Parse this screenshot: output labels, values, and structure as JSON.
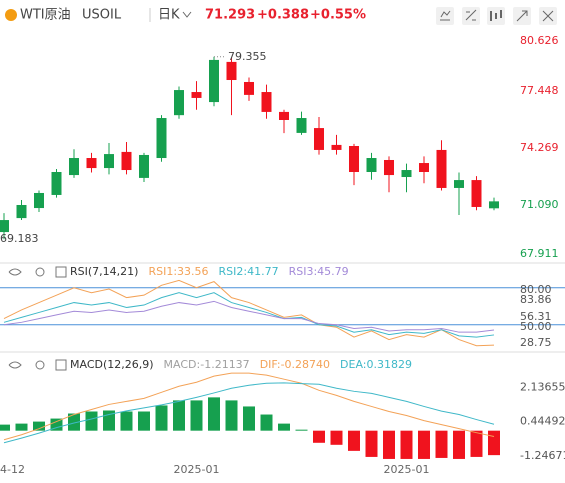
{
  "header": {
    "title": "WTI原油",
    "symbol": "USOIL",
    "period": "日K",
    "price": "71.293",
    "change": "+0.388",
    "change_pct": "+0.55%"
  },
  "chart_data": [
    {
      "type": "candlestick",
      "up_color": "#16a04f",
      "down_color": "#f0131e",
      "categories": [
        "4-12",
        null,
        null,
        null,
        null,
        null,
        null,
        null,
        null,
        null,
        null,
        "2025-01",
        null,
        null,
        null,
        null,
        null,
        null,
        null,
        null,
        null,
        null,
        null,
        "2025-01",
        null,
        null,
        null,
        null,
        null
      ],
      "open": [
        69.58,
        70.36,
        70.92,
        71.65,
        72.76,
        73.71,
        73.15,
        74.05,
        72.6,
        73.71,
        76.1,
        77.39,
        76.83,
        79.07,
        77.95,
        77.39,
        76.28,
        75.11,
        75.38,
        74.44,
        74.38,
        72.93,
        73.6,
        72.65,
        73.43,
        74.16,
        72.04,
        72.48,
        70.905
      ],
      "high": [
        70.64,
        71.37,
        71.9,
        73.1,
        74.2,
        74.0,
        74.55,
        74.6,
        74.0,
        76.1,
        77.7,
        78.0,
        79.355,
        79.3,
        78.2,
        77.8,
        76.4,
        76.3,
        76.0,
        75.0,
        74.5,
        74.0,
        73.8,
        73.4,
        73.8,
        74.7,
        72.9,
        72.7,
        71.5
      ],
      "low": [
        69.183,
        70.25,
        70.7,
        71.5,
        72.6,
        72.9,
        72.8,
        72.8,
        72.37,
        73.5,
        75.9,
        76.4,
        76.6,
        76.1,
        76.9,
        75.9,
        75.1,
        75.0,
        73.9,
        73.9,
        72.2,
        72.5,
        71.8,
        71.8,
        72.3,
        71.9,
        70.53,
        70.8,
        70.8
      ],
      "close": [
        70.25,
        71.09,
        71.76,
        72.93,
        73.71,
        73.15,
        73.93,
        73.04,
        73.88,
        75.94,
        77.5,
        77.06,
        79.18,
        78.06,
        77.23,
        76.28,
        75.83,
        75.94,
        74.16,
        74.16,
        72.93,
        73.71,
        72.76,
        73.04,
        72.93,
        72.04,
        72.48,
        70.98,
        71.293
      ],
      "ylim": [
        67.911,
        80.626
      ],
      "yticks": [
        80.626,
        77.448,
        74.269,
        {
          "value": 71.09,
          "label": "71.090"
        },
        67.911
      ],
      "annotations": [
        "79.355",
        "69.183"
      ]
    },
    {
      "type": "line",
      "title": "RSI(7,14,21)",
      "series": [
        {
          "name": "RSI1:33.56",
          "color": "#f3a257",
          "values": [
            55,
            62,
            68,
            74,
            80,
            76,
            79,
            72,
            74,
            82,
            86,
            80,
            85,
            72,
            68,
            62,
            56,
            58,
            50,
            48,
            40,
            45,
            38,
            42,
            40,
            46,
            38,
            33,
            33.56
          ]
        },
        {
          "name": "RSI2:41.77",
          "color": "#3fb8c8",
          "values": [
            52,
            56,
            60,
            64,
            68,
            66,
            68,
            64,
            66,
            72,
            76,
            72,
            76,
            68,
            64,
            60,
            55,
            56,
            50,
            49,
            44,
            46,
            42,
            44,
            43,
            46,
            41,
            40,
            41.77
          ]
        },
        {
          "name": "RSI3:45.79",
          "color": "#a38ad8",
          "values": [
            50,
            52,
            55,
            58,
            61,
            60,
            62,
            60,
            61,
            65,
            68,
            66,
            69,
            64,
            61,
            58,
            55,
            55,
            51,
            50,
            47,
            48,
            45,
            46,
            46,
            47,
            44,
            44,
            45.79
          ]
        }
      ],
      "ylim": [
        28.75,
        83.86
      ],
      "yticks": [
        {
          "value": 80,
          "label": "80.00"
        },
        83.86,
        56.31,
        {
          "value": 50,
          "label": "50.00"
        },
        28.75
      ],
      "reference_lines": [
        80,
        50
      ],
      "reference_color": "#4a90d9"
    },
    {
      "type": "macd",
      "title": "MACD(12,26,9)",
      "up_color": "#16a04f",
      "down_color": "#f0131e",
      "series": [
        {
          "name": "MACD:-1.21137",
          "color": "#a0a0a0",
          "kind": "bar",
          "values": [
            0.3,
            0.35,
            0.45,
            0.6,
            0.85,
            0.95,
            1.0,
            0.95,
            0.95,
            1.25,
            1.5,
            1.5,
            1.65,
            1.5,
            1.2,
            0.8,
            0.35,
            0.05,
            -0.6,
            -0.7,
            -1.0,
            -1.3,
            -1.4,
            -1.4,
            -1.4,
            -1.35,
            -1.4,
            -1.3,
            -1.21137
          ]
        },
        {
          "name": "DIF:-0.28740",
          "color": "#f3a257",
          "kind": "line",
          "values": [
            -0.45,
            -0.2,
            0.1,
            0.45,
            0.8,
            1.05,
            1.3,
            1.45,
            1.6,
            1.9,
            2.2,
            2.4,
            2.7,
            2.85,
            2.85,
            2.75,
            2.55,
            2.35,
            2.0,
            1.75,
            1.45,
            1.2,
            0.95,
            0.75,
            0.5,
            0.3,
            0.1,
            -0.1,
            -0.2874
          ]
        },
        {
          "name": "DEA:0.31829",
          "color": "#3fb8c8",
          "kind": "line",
          "values": [
            -0.6,
            -0.37,
            -0.12,
            0.15,
            0.38,
            0.58,
            0.8,
            0.98,
            1.13,
            1.28,
            1.45,
            1.65,
            1.87,
            2.1,
            2.25,
            2.35,
            2.37,
            2.33,
            2.3,
            2.1,
            1.95,
            1.85,
            1.65,
            1.45,
            1.2,
            0.97,
            0.8,
            0.55,
            0.31829
          ]
        }
      ],
      "ylim": [
        -1.7,
        3.6
      ],
      "yticks": [
        2.13655,
        0.44492,
        -1.24671
      ]
    }
  ]
}
